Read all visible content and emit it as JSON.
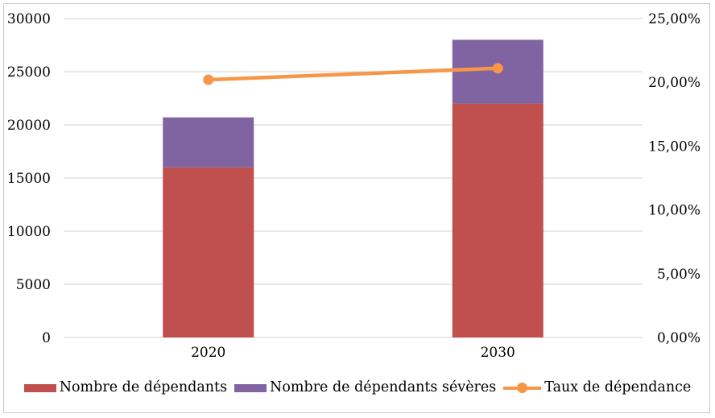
{
  "chart_data": {
    "type": "combo",
    "title": "",
    "categories": [
      "2020",
      "2030"
    ],
    "series": [
      {
        "name": "Nombre de dépendants",
        "type": "bar",
        "stack": "total",
        "axis": "left",
        "color": "#C0504D",
        "values": [
          16000,
          22000
        ]
      },
      {
        "name": "Nombre de dépendants sévères",
        "type": "bar",
        "stack": "total",
        "axis": "left",
        "color": "#8064A2",
        "values": [
          4700,
          6000
        ]
      },
      {
        "name": "Taux de dépendance",
        "type": "line",
        "axis": "right",
        "color": "#F79646",
        "values": [
          20.2,
          21.1
        ]
      }
    ],
    "left_axis": {
      "min": 0,
      "max": 30000,
      "step": 5000,
      "tick_labels": [
        "0",
        "5000",
        "10000",
        "15000",
        "20000",
        "25000",
        "30000"
      ]
    },
    "right_axis": {
      "min": 0,
      "max": 25,
      "step": 5,
      "tick_labels": [
        "0,00%",
        "5,00%",
        "10,00%",
        "15,00%",
        "20,00%",
        "25,00%"
      ]
    },
    "grid": true,
    "gridline_color": "#D9D9D9",
    "legend_position": "bottom"
  }
}
